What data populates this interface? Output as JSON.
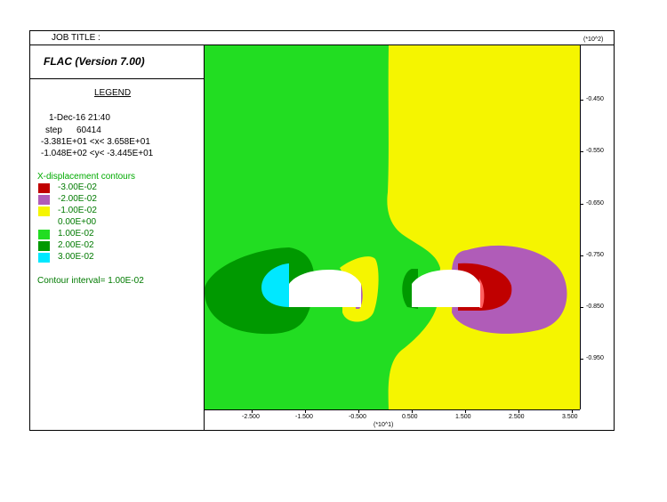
{
  "header": {
    "job_title_label": "JOB TITLE :",
    "app_title": "FLAC (Version 7.00)"
  },
  "legend": {
    "title": "LEGEND",
    "date_time": "1-Dec-16  21:40",
    "step_label": "step",
    "step_value": "60414",
    "x_range": "-3.381E+01 <x<  3.658E+01",
    "y_range": "-1.048E+02 <y< -3.445E+01",
    "contour_title": "X-displacement contours",
    "contour_interval": "Contour interval=  1.00E-02",
    "levels": [
      {
        "label": "-3.00E-02",
        "color": "#c00000"
      },
      {
        "label": "-2.00E-02",
        "color": "#b05cb8"
      },
      {
        "label": "-1.00E-02",
        "color": "#f5f500"
      },
      {
        "label": "0.00E+00",
        "color": "#ffffff"
      },
      {
        "label": "1.00E-02",
        "color": "#22dd22"
      },
      {
        "label": "2.00E-02",
        "color": "#009900"
      },
      {
        "label": "3.00E-02",
        "color": "#00e8ff"
      }
    ]
  },
  "chart_data": {
    "type": "contour",
    "title": "X-displacement contours",
    "x_ticks": [
      "-2.500",
      "-1.500",
      "-0.500",
      "0.500",
      "1.500",
      "2.500",
      "3.500"
    ],
    "x_tick_values": [
      -2.5,
      -1.5,
      -0.5,
      0.5,
      1.5,
      2.5,
      3.5
    ],
    "x_scale_label": "(*10^1)",
    "y_ticks": [
      "-0.450",
      "-0.550",
      "-0.650",
      "-0.750",
      "-0.850",
      "-0.950"
    ],
    "y_tick_values": [
      -0.45,
      -0.55,
      -0.65,
      -0.75,
      -0.85,
      -0.95
    ],
    "y_scale_label": "(*10^2)",
    "xlim": [
      -3.381,
      3.658
    ],
    "ylim": [
      -1.048,
      -0.3445
    ],
    "contour_interval": 0.01,
    "colors": {
      "negative_zone": "#f5f500",
      "positive_zone": "#22dd22",
      "level_2e-2": "#009900",
      "level_3e-2": "#00e8ff",
      "level_m2e-2": "#b05cb8",
      "level_m3e-2": "#c00000",
      "level_m4e-2": "#ff6060",
      "opening": "#ffffff"
    }
  }
}
